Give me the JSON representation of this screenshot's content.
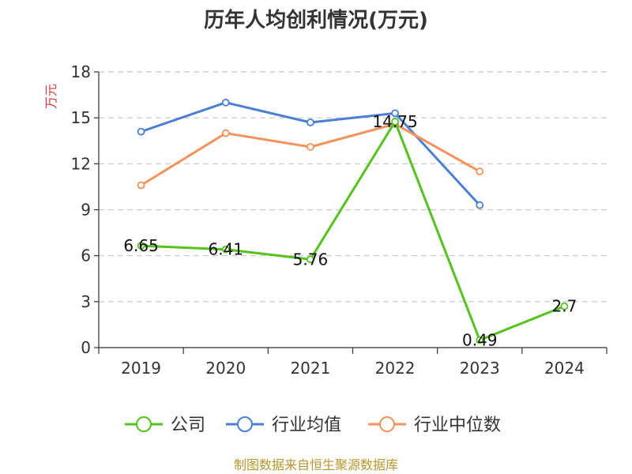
{
  "chart_data": {
    "type": "line",
    "title": "历年人均创利情况(万元)",
    "ylabel": "万元",
    "categories": [
      "2019",
      "2020",
      "2021",
      "2022",
      "2023",
      "2024"
    ],
    "yticks": [
      "0",
      "3",
      "6",
      "9",
      "12",
      "15",
      "18"
    ],
    "ylim": [
      0,
      18
    ],
    "grid": true,
    "legend_position": "bottom",
    "series": [
      {
        "name": "公司",
        "color": "#52c41a",
        "values": [
          6.65,
          6.41,
          5.76,
          14.75,
          0.49,
          2.7
        ],
        "labels": [
          "6.65",
          "6.41",
          "5.76",
          "14.75",
          "0.49",
          "2.7"
        ]
      },
      {
        "name": "行业均值",
        "color": "#4a7fd8",
        "values": [
          14.1,
          16.0,
          14.7,
          15.3,
          9.3,
          null
        ]
      },
      {
        "name": "行业中位数",
        "color": "#f5915a",
        "values": [
          10.6,
          14.0,
          13.1,
          14.6,
          11.5,
          null
        ]
      }
    ]
  },
  "source": "制图数据来自恒生聚源数据库",
  "colors": {
    "ylabel": "#e03a3a",
    "source": "#b8962e",
    "grid": "#c8c8c8",
    "axis": "#333333"
  }
}
